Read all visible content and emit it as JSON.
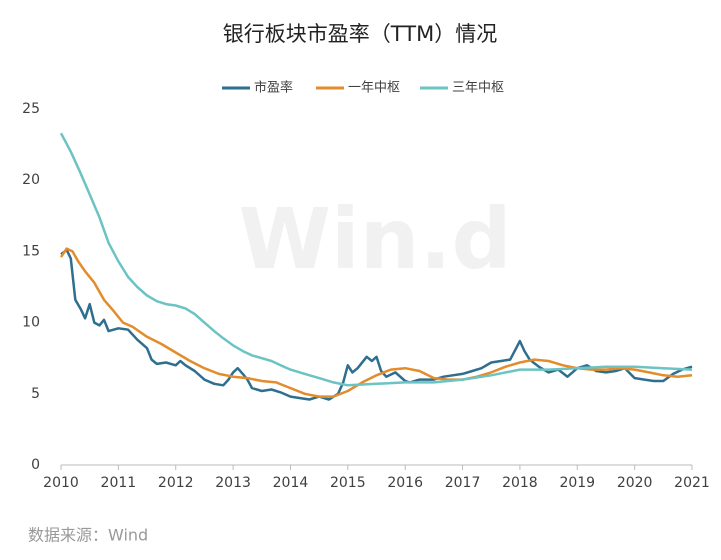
{
  "chart_data": {
    "type": "line",
    "title": "银行板块市盈率（TTM）情况",
    "source": "数据来源：Wind",
    "watermark": "Win.d",
    "xlim": [
      2010,
      2021
    ],
    "xticks": [
      2010,
      2011,
      2012,
      2013,
      2014,
      2015,
      2016,
      2017,
      2018,
      2019,
      2020,
      2021
    ],
    "ylim": [
      0,
      25
    ],
    "yticks": [
      0,
      5,
      10,
      15,
      20,
      25
    ],
    "grid": false,
    "series": [
      {
        "name": "市盈率",
        "color": "#2e6e8e",
        "x": [
          2010.0,
          2010.1,
          2010.17,
          2010.25,
          2010.35,
          2010.42,
          2010.5,
          2010.58,
          2010.67,
          2010.75,
          2010.83,
          2011.0,
          2011.17,
          2011.33,
          2011.5,
          2011.58,
          2011.67,
          2011.83,
          2012.0,
          2012.08,
          2012.17,
          2012.33,
          2012.5,
          2012.67,
          2012.83,
          2012.92,
          2013.0,
          2013.08,
          2013.17,
          2013.25,
          2013.33,
          2013.5,
          2013.67,
          2013.83,
          2014.0,
          2014.17,
          2014.33,
          2014.5,
          2014.67,
          2014.83,
          2014.92,
          2015.0,
          2015.08,
          2015.17,
          2015.33,
          2015.42,
          2015.5,
          2015.58,
          2015.67,
          2015.83,
          2016.0,
          2016.08,
          2016.25,
          2016.5,
          2016.67,
          2016.83,
          2017.0,
          2017.17,
          2017.33,
          2017.5,
          2017.67,
          2017.83,
          2018.0,
          2018.08,
          2018.17,
          2018.33,
          2018.5,
          2018.67,
          2018.83,
          2019.0,
          2019.17,
          2019.33,
          2019.5,
          2019.67,
          2019.83,
          2020.0,
          2020.17,
          2020.33,
          2020.5,
          2020.67,
          2020.83,
          2021.0
        ],
        "values": [
          14.8,
          15.1,
          14.5,
          11.6,
          10.9,
          10.3,
          11.3,
          10.0,
          9.8,
          10.2,
          9.4,
          9.6,
          9.5,
          8.8,
          8.2,
          7.4,
          7.1,
          7.2,
          7.0,
          7.3,
          7.0,
          6.6,
          6.0,
          5.7,
          5.6,
          6.0,
          6.5,
          6.8,
          6.4,
          6.0,
          5.4,
          5.2,
          5.3,
          5.1,
          4.8,
          4.7,
          4.6,
          4.8,
          4.6,
          5.0,
          5.8,
          7.0,
          6.5,
          6.8,
          7.6,
          7.3,
          7.6,
          6.6,
          6.2,
          6.5,
          5.9,
          5.8,
          6.0,
          6.0,
          6.2,
          6.3,
          6.4,
          6.6,
          6.8,
          7.2,
          7.3,
          7.4,
          8.7,
          8.0,
          7.4,
          6.9,
          6.5,
          6.7,
          6.2,
          6.8,
          7.0,
          6.6,
          6.5,
          6.6,
          6.8,
          6.1,
          6.0,
          5.9,
          5.9,
          6.4,
          6.7,
          6.9
        ]
      },
      {
        "name": "一年中枢",
        "color": "#e38c2b",
        "x": [
          2010.0,
          2010.1,
          2010.2,
          2010.3,
          2010.42,
          2010.58,
          2010.75,
          2010.92,
          2011.08,
          2011.25,
          2011.5,
          2011.75,
          2012.0,
          2012.25,
          2012.5,
          2012.75,
          2013.0,
          2013.25,
          2013.5,
          2013.75,
          2014.0,
          2014.25,
          2014.5,
          2014.75,
          2015.0,
          2015.25,
          2015.5,
          2015.75,
          2016.0,
          2016.25,
          2016.5,
          2016.75,
          2017.0,
          2017.25,
          2017.5,
          2017.75,
          2018.0,
          2018.25,
          2018.5,
          2018.75,
          2019.0,
          2019.25,
          2019.5,
          2019.75,
          2020.0,
          2020.25,
          2020.5,
          2020.75,
          2021.0
        ],
        "values": [
          14.6,
          15.2,
          15.0,
          14.3,
          13.6,
          12.8,
          11.6,
          10.8,
          10.0,
          9.7,
          9.0,
          8.5,
          7.9,
          7.3,
          6.8,
          6.4,
          6.2,
          6.1,
          5.9,
          5.8,
          5.4,
          5.0,
          4.8,
          4.8,
          5.2,
          5.8,
          6.3,
          6.7,
          6.8,
          6.6,
          6.1,
          6.0,
          6.0,
          6.2,
          6.5,
          6.9,
          7.2,
          7.4,
          7.3,
          7.0,
          6.8,
          6.7,
          6.7,
          6.8,
          6.7,
          6.5,
          6.3,
          6.2,
          6.3
        ]
      },
      {
        "name": "三年中枢",
        "color": "#6cc3c3",
        "x": [
          2010.0,
          2010.17,
          2010.33,
          2010.5,
          2010.67,
          2010.83,
          2011.0,
          2011.17,
          2011.33,
          2011.5,
          2011.67,
          2011.83,
          2012.0,
          2012.17,
          2012.33,
          2012.5,
          2012.67,
          2012.83,
          2013.0,
          2013.17,
          2013.33,
          2013.5,
          2013.67,
          2013.83,
          2014.0,
          2014.25,
          2014.5,
          2014.75,
          2015.0,
          2015.5,
          2016.0,
          2016.5,
          2017.0,
          2017.5,
          2018.0,
          2018.5,
          2019.0,
          2019.5,
          2020.0,
          2020.5,
          2021.0
        ],
        "values": [
          23.3,
          22.0,
          20.6,
          19.0,
          17.4,
          15.6,
          14.3,
          13.2,
          12.5,
          11.9,
          11.5,
          11.3,
          11.2,
          11.0,
          10.6,
          10.0,
          9.4,
          8.9,
          8.4,
          8.0,
          7.7,
          7.5,
          7.3,
          7.0,
          6.7,
          6.4,
          6.1,
          5.8,
          5.6,
          5.7,
          5.8,
          5.8,
          6.0,
          6.3,
          6.7,
          6.7,
          6.8,
          6.9,
          6.9,
          6.8,
          6.7
        ]
      }
    ]
  }
}
